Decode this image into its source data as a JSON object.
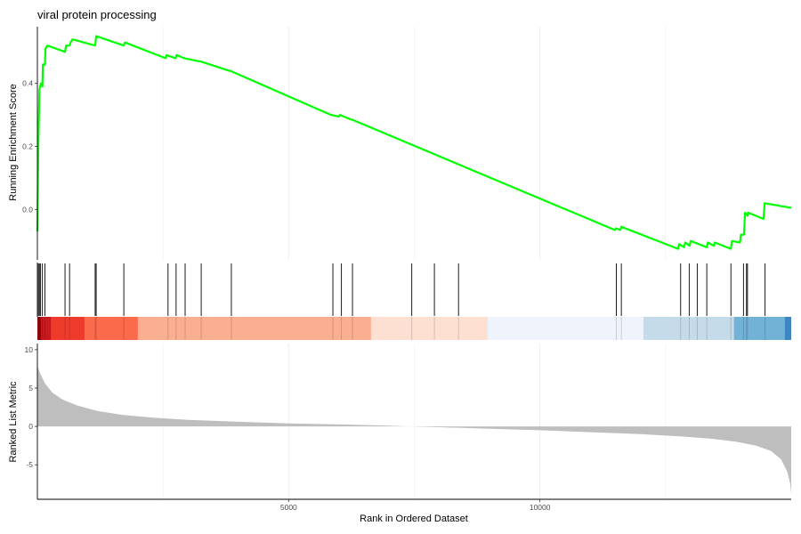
{
  "chart_data": {
    "type": "line",
    "title": "viral protein processing",
    "xlabel": "Rank in Ordered Dataset",
    "xlim": [
      0,
      15000
    ],
    "x_ticks": [
      5000,
      10000
    ],
    "grid": true,
    "panels": {
      "enrichment": {
        "ylabel": "Running Enrichment Score",
        "y_ticks": [
          0.0,
          0.2,
          0.4
        ],
        "ylim": [
          -0.16,
          0.58
        ],
        "line_color": "#00ff00",
        "points": [
          [
            0,
            -0.07
          ],
          [
            20,
            0.21
          ],
          [
            40,
            0.38
          ],
          [
            70,
            0.4
          ],
          [
            100,
            0.39
          ],
          [
            110,
            0.46
          ],
          [
            150,
            0.46
          ],
          [
            160,
            0.51
          ],
          [
            200,
            0.52
          ],
          [
            550,
            0.5
          ],
          [
            570,
            0.52
          ],
          [
            640,
            0.52
          ],
          [
            640,
            0.52
          ],
          [
            660,
            0.53
          ],
          [
            700,
            0.54
          ],
          [
            1150,
            0.52
          ],
          [
            1170,
            0.55
          ],
          [
            1720,
            0.52
          ],
          [
            1740,
            0.53
          ],
          [
            2550,
            0.48
          ],
          [
            2570,
            0.49
          ],
          [
            2750,
            0.48
          ],
          [
            2770,
            0.49
          ],
          [
            2920,
            0.48
          ],
          [
            3220,
            0.47
          ],
          [
            3240,
            0.47
          ],
          [
            3820,
            0.44
          ],
          [
            3840,
            0.44
          ],
          [
            5840,
            0.3
          ],
          [
            6000,
            0.295
          ],
          [
            6020,
            0.3
          ],
          [
            6240,
            0.285
          ],
          [
            6260,
            0.285
          ],
          [
            11490,
            -0.065
          ],
          [
            11510,
            -0.06
          ],
          [
            11600,
            -0.065
          ],
          [
            11620,
            -0.055
          ],
          [
            12750,
            -0.125
          ],
          [
            12770,
            -0.11
          ],
          [
            12870,
            -0.12
          ],
          [
            12890,
            -0.105
          ],
          [
            12980,
            -0.115
          ],
          [
            13000,
            -0.1
          ],
          [
            13320,
            -0.12
          ],
          [
            13340,
            -0.105
          ],
          [
            13460,
            -0.115
          ],
          [
            13480,
            -0.105
          ],
          [
            13800,
            -0.125
          ],
          [
            13820,
            -0.1
          ],
          [
            13980,
            -0.105
          ],
          [
            14000,
            -0.08
          ],
          [
            14060,
            -0.08
          ],
          [
            14080,
            -0.01
          ],
          [
            14130,
            -0.02
          ],
          [
            14140,
            -0.01
          ],
          [
            14450,
            -0.03
          ],
          [
            14470,
            0.02
          ],
          [
            15000,
            0.005
          ]
        ]
      },
      "hits": {
        "line_color": "#000000",
        "positions": [
          20,
          40,
          60,
          100,
          150,
          550,
          640,
          1150,
          1170,
          1720,
          2600,
          2760,
          2940,
          3260,
          3860,
          5880,
          6050,
          6270,
          7450,
          7900,
          8380,
          11520,
          11620,
          12800,
          12970,
          13130,
          13320,
          13800,
          14050,
          14110,
          14130,
          14480
        ]
      },
      "color_bar": {
        "segments": [
          {
            "from": 0,
            "to": 70,
            "color": "#99000d"
          },
          {
            "from": 70,
            "to": 280,
            "color": "#cb181d"
          },
          {
            "from": 280,
            "to": 940,
            "color": "#ef3b2c"
          },
          {
            "from": 940,
            "to": 2000,
            "color": "#fb6a4a"
          },
          {
            "from": 2000,
            "to": 6640,
            "color": "#fcae91"
          },
          {
            "from": 6640,
            "to": 8960,
            "color": "#fee0d2"
          },
          {
            "from": 8960,
            "to": 12060,
            "color": "#eff3fb"
          },
          {
            "from": 12060,
            "to": 13860,
            "color": "#c6dbe9"
          },
          {
            "from": 13860,
            "to": 14870,
            "color": "#72b2d7"
          },
          {
            "from": 14870,
            "to": 15000,
            "color": "#3d86c2"
          }
        ]
      },
      "ranked_metric": {
        "ylabel": "Ranked List Metric",
        "y_ticks": [
          -5,
          0,
          5,
          10
        ],
        "ylim": [
          -9.5,
          10.8
        ],
        "fill_color": "#bebebe",
        "points": [
          [
            0,
            7.9
          ],
          [
            50,
            7.0
          ],
          [
            150,
            5.6
          ],
          [
            300,
            4.4
          ],
          [
            500,
            3.5
          ],
          [
            800,
            2.7
          ],
          [
            1200,
            2.0
          ],
          [
            1700,
            1.5
          ],
          [
            2300,
            1.15
          ],
          [
            3000,
            0.85
          ],
          [
            4000,
            0.6
          ],
          [
            5000,
            0.4
          ],
          [
            6000,
            0.25
          ],
          [
            7000,
            0.1
          ],
          [
            7400,
            0.0
          ],
          [
            8000,
            -0.1
          ],
          [
            9000,
            -0.3
          ],
          [
            10000,
            -0.5
          ],
          [
            11000,
            -0.75
          ],
          [
            12000,
            -1.0
          ],
          [
            12800,
            -1.3
          ],
          [
            13400,
            -1.6
          ],
          [
            13900,
            -2.0
          ],
          [
            14300,
            -2.5
          ],
          [
            14600,
            -3.2
          ],
          [
            14800,
            -4.3
          ],
          [
            14920,
            -5.9
          ],
          [
            14980,
            -7.5
          ],
          [
            15000,
            -8.8
          ]
        ]
      }
    }
  }
}
